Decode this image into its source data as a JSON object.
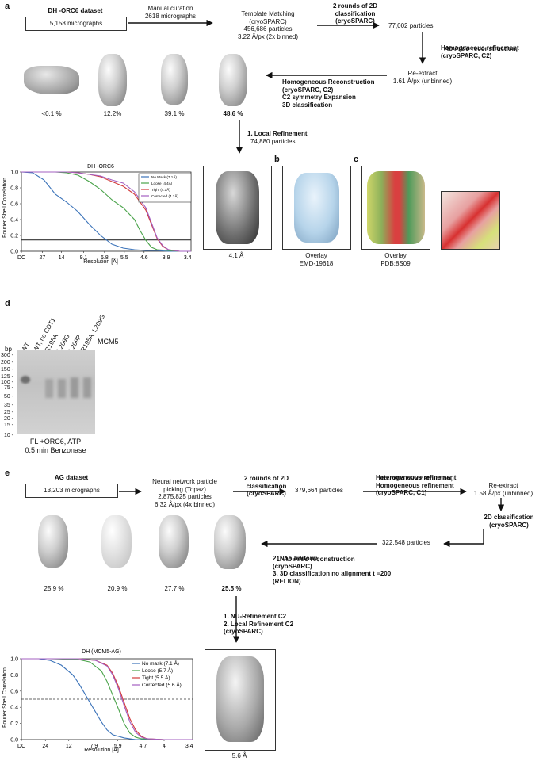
{
  "panel_a": {
    "label": "a",
    "dataset_title": "DH -ORC6 dataset",
    "dataset_count": "5,158 micrographs",
    "manual_curation": "Manual curation\n2618 micrographs",
    "template_matching": "Template Matching\n(cryoSPARC)\n456,686 particles\n3.22 Å/px (2x binned)",
    "step_2d": "2 rounds of 2D\nclassification\n(cryoSPARC)",
    "particles_77k": "77,002 particles",
    "ab_initio_em": "Ab initio",
    "ab_initio_rest": " reconstruction,",
    "ab_initio_lines": "Homogeneous refinement\n(cryoSPARC, C2)",
    "reextract": "Re-extract\n1.61 Å/px (unbinned)",
    "homog_recon": "Homogeneous Reconstruction\n(cryoSPARC, C2)\nC2 symmetry Expansion\n3D classification",
    "class_pcts": [
      "<0.1 %",
      "12.2%",
      "39.1 %",
      "48.6 %"
    ],
    "local_refinement": "1. Local Refinement",
    "local_particles": "74,880 particles",
    "map_res": "4.1 Å"
  },
  "panel_b": {
    "label": "b",
    "caption": "Overlay\nEMD-19618"
  },
  "panel_c": {
    "label": "c",
    "caption": "Overlay\nPDB:8S09"
  },
  "panel_d": {
    "label": "d",
    "lanes": [
      "WT",
      "WT, no CDT1",
      "R195A",
      "L209G",
      "L209P",
      "R195A, L209G"
    ],
    "protein": "MCM5",
    "bp_label": "bp",
    "ladder": [
      "300",
      "200",
      "150",
      "125",
      "100",
      "75",
      "50",
      "35",
      "25",
      "20",
      "15",
      "10"
    ],
    "caption": "FL +ORC6, ATP\n0.5 min Benzonase"
  },
  "panel_e": {
    "label": "e",
    "dataset_title": "AG dataset",
    "dataset_count": "13,203 micrographs",
    "picking": "Neural network particle\npicking (Topaz)\n2,875,825 particles\n6.32 Å/px (4x binned)",
    "step_2d": "2 rounds of 2D\nclassification\n(cryoSPARC)",
    "particles_379k": "379,664 particles",
    "ab_initio_em": "Ab initio",
    "ab_initio_rest": " reconstruction,",
    "ab_initio_lines": "Heterogeneous refinement\nHomogeneous refinement\n(cryoSPARC, C1)",
    "reextract": "Re-extract\n1.58 Å/px (unbinned)",
    "class2d": "2D classification\n(cryoSPARC)",
    "particles_322k": "322,548 particles",
    "steps_l1_pre": "1. ",
    "steps_l1_em": "Ab initio",
    "steps_l1_post": " reconstruction",
    "steps_rest": "2. Non-uniform,\n(cryoSPARC)\n3. 3D classification no alignment t =200\n(RELION)",
    "class_pcts": [
      "25.9 %",
      "20.9 %",
      "27.7 %",
      "25.5 %"
    ],
    "nu_refine": "1. NU-Refinement C2\n2. Local Refinement C2\n(cryoSPARC)",
    "map_res": "5.6 Å"
  },
  "chart_data": [
    {
      "type": "line",
      "title": "DH -ORC6",
      "xlabel": "Resolution [Å]",
      "ylabel": "Fourier Shell Correlation",
      "xticklabels": [
        "DC",
        "27",
        "14",
        "9.1",
        "6.8",
        "5.5",
        "4.6",
        "3.9",
        "3.4"
      ],
      "x_frequency": [
        0,
        0.037,
        0.071,
        0.11,
        0.147,
        0.182,
        0.217,
        0.256,
        0.294
      ],
      "ylim": [
        0,
        1.0
      ],
      "yticks": [
        0.0,
        0.2,
        0.4,
        0.6,
        0.8,
        1.0
      ],
      "threshold": 0.143,
      "legend_position": "top-right",
      "series": [
        {
          "name": "No Mask (7.1Å)",
          "color": "#3b73b9",
          "x": [
            0,
            0.02,
            0.04,
            0.06,
            0.08,
            0.1,
            0.12,
            0.14,
            0.16,
            0.18,
            0.2,
            0.22,
            0.24,
            0.26,
            0.28,
            0.3
          ],
          "y": [
            1.0,
            0.99,
            0.9,
            0.72,
            0.62,
            0.5,
            0.34,
            0.2,
            0.09,
            0.04,
            0.02,
            0.01,
            0.01,
            0.0,
            0.0,
            0.0
          ]
        },
        {
          "name": "Loose (4.4Å)",
          "color": "#4aa34a",
          "x": [
            0,
            0.02,
            0.04,
            0.06,
            0.08,
            0.1,
            0.12,
            0.14,
            0.16,
            0.18,
            0.2,
            0.21,
            0.22,
            0.23,
            0.24,
            0.26,
            0.28,
            0.3
          ],
          "y": [
            1.0,
            1.0,
            1.0,
            1.0,
            0.99,
            0.96,
            0.88,
            0.78,
            0.65,
            0.55,
            0.4,
            0.26,
            0.14,
            0.05,
            0.02,
            0.01,
            0.0,
            0.0
          ]
        },
        {
          "name": "Tight (4.1Å)",
          "color": "#d23a3a",
          "x": [
            0,
            0.02,
            0.04,
            0.06,
            0.08,
            0.1,
            0.12,
            0.14,
            0.16,
            0.18,
            0.2,
            0.22,
            0.23,
            0.24,
            0.25,
            0.26,
            0.28,
            0.3
          ],
          "y": [
            1.0,
            1.0,
            1.0,
            1.0,
            1.0,
            0.99,
            0.97,
            0.94,
            0.88,
            0.82,
            0.72,
            0.52,
            0.34,
            0.16,
            0.06,
            0.02,
            0.0,
            0.0
          ]
        },
        {
          "name": "Corrected (4.1Å)",
          "color": "#a35fc1",
          "x": [
            0,
            0.02,
            0.04,
            0.06,
            0.08,
            0.1,
            0.12,
            0.14,
            0.16,
            0.18,
            0.2,
            0.22,
            0.23,
            0.24,
            0.25,
            0.26,
            0.28,
            0.3
          ],
          "y": [
            1.0,
            1.0,
            1.0,
            1.0,
            1.0,
            0.99,
            0.97,
            0.95,
            0.9,
            0.86,
            0.75,
            0.55,
            0.36,
            0.17,
            0.07,
            0.02,
            0.0,
            0.0
          ]
        }
      ]
    },
    {
      "type": "line",
      "title": "DH (MCM5-AG)",
      "xlabel": "Resolution [Å]",
      "ylabel": "Fourier Shell Correlation",
      "xticklabels": [
        "DC",
        "24",
        "12",
        "7.9",
        "5.9",
        "4.7",
        "4",
        "3.4"
      ],
      "x_frequency": [
        0,
        0.042,
        0.083,
        0.127,
        0.169,
        0.213,
        0.25,
        0.294
      ],
      "ylim": [
        0,
        1.0
      ],
      "yticks": [
        0.0,
        0.2,
        0.4,
        0.6,
        0.8,
        1.0
      ],
      "thresholds": [
        0.5,
        0.143
      ],
      "legend_position": "top-right",
      "series": [
        {
          "name": "No mask (7.1 Å)",
          "color": "#3b73b9",
          "x": [
            0,
            0.03,
            0.05,
            0.07,
            0.09,
            0.1,
            0.11,
            0.12,
            0.13,
            0.14,
            0.15,
            0.16,
            0.18,
            0.2,
            0.25,
            0.3
          ],
          "y": [
            1.0,
            1.0,
            0.98,
            0.92,
            0.8,
            0.7,
            0.58,
            0.46,
            0.34,
            0.22,
            0.12,
            0.06,
            0.02,
            0.0,
            0.0,
            0.0
          ]
        },
        {
          "name": "Loose (5.7 Å)",
          "color": "#4aa34a",
          "x": [
            0,
            0.05,
            0.1,
            0.12,
            0.14,
            0.15,
            0.16,
            0.17,
            0.18,
            0.19,
            0.2,
            0.21,
            0.25,
            0.3
          ],
          "y": [
            1.0,
            1.0,
            0.99,
            0.96,
            0.85,
            0.72,
            0.55,
            0.38,
            0.2,
            0.08,
            0.03,
            0.01,
            0.0,
            0.0
          ]
        },
        {
          "name": "Tight (5.5 Å)",
          "color": "#d23a3a",
          "x": [
            0,
            0.05,
            0.1,
            0.13,
            0.15,
            0.16,
            0.17,
            0.18,
            0.19,
            0.2,
            0.21,
            0.22,
            0.25,
            0.3
          ],
          "y": [
            1.0,
            1.0,
            1.0,
            0.98,
            0.92,
            0.82,
            0.66,
            0.46,
            0.26,
            0.12,
            0.04,
            0.01,
            0.0,
            0.0
          ]
        },
        {
          "name": "Corrected (5.6 Å)",
          "color": "#a35fc1",
          "x": [
            0,
            0.05,
            0.1,
            0.13,
            0.15,
            0.16,
            0.17,
            0.18,
            0.19,
            0.2,
            0.21,
            0.22,
            0.25,
            0.3
          ],
          "y": [
            1.0,
            1.0,
            1.0,
            0.98,
            0.91,
            0.8,
            0.63,
            0.42,
            0.22,
            0.09,
            0.03,
            0.01,
            0.0,
            0.0
          ]
        }
      ]
    }
  ]
}
